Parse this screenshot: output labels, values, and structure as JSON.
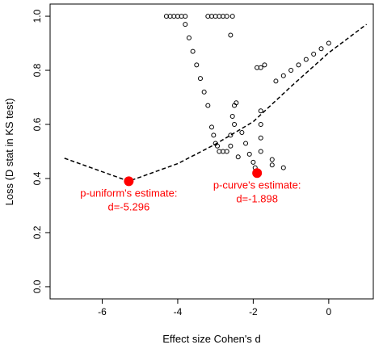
{
  "chart_data": {
    "type": "scatter",
    "xlabel": "Effect size Cohen's d",
    "ylabel": "Loss (D stat in KS test)",
    "xlim": [
      -7.38,
      1.18
    ],
    "ylim": [
      -0.045,
      1.045
    ],
    "xticks": [
      -6,
      -4,
      -2,
      0
    ],
    "yticks": [
      {
        "value": 0,
        "label": "0.0"
      },
      {
        "value": 0.2,
        "label": "0.2"
      },
      {
        "value": 0.4,
        "label": "0.4"
      },
      {
        "value": 0.6,
        "label": "0.6"
      },
      {
        "value": 0.8,
        "label": "0.8"
      },
      {
        "value": 1,
        "label": "1.0"
      }
    ],
    "points": {
      "color": "#000000",
      "x": [
        -4.3,
        -4.2,
        -4.1,
        -4.0,
        -3.9,
        -3.8,
        -3.2,
        -3.1,
        -3.0,
        -2.9,
        -2.8,
        -2.7,
        -2.55,
        -2.6,
        -3.8,
        -3.7,
        -3.6,
        -3.5,
        -3.4,
        -3.3,
        -3.2,
        -3.1,
        -3.05,
        -3.0,
        -2.95,
        -2.9,
        -2.8,
        -2.7,
        -2.6,
        -2.6,
        -2.5,
        -2.55,
        -2.5,
        -2.45,
        -2.4,
        -2.3,
        -2.2,
        -2.1,
        -2.0,
        -1.95,
        -1.8,
        -1.8,
        -1.8,
        -1.8,
        -1.5,
        -1.5,
        -1.2,
        -1.9,
        -1.8,
        -1.7,
        -1.4,
        -1.2,
        -1.0,
        -0.8,
        -0.6,
        -0.4,
        -0.2,
        0
      ],
      "y": [
        1.0,
        1.0,
        1.0,
        1.0,
        1.0,
        1.0,
        1.0,
        1.0,
        1.0,
        1.0,
        1.0,
        1.0,
        1.0,
        0.93,
        0.97,
        0.92,
        0.87,
        0.82,
        0.77,
        0.72,
        0.67,
        0.59,
        0.56,
        0.53,
        0.52,
        0.5,
        0.5,
        0.5,
        0.52,
        0.56,
        0.6,
        0.63,
        0.67,
        0.68,
        0.48,
        0.57,
        0.53,
        0.49,
        0.46,
        0.44,
        0.65,
        0.6,
        0.55,
        0.5,
        0.47,
        0.45,
        0.44,
        0.81,
        0.81,
        0.82,
        0.76,
        0.78,
        0.8,
        0.82,
        0.84,
        0.86,
        0.88,
        0.9
      ]
    },
    "line": {
      "color": "#000000",
      "x": [
        -7,
        -5.296,
        -4,
        -3,
        -2,
        -1,
        0,
        1
      ],
      "y": [
        0.475,
        0.39,
        0.455,
        0.527,
        0.61,
        0.74,
        0.865,
        0.97
      ]
    },
    "estimates": [
      {
        "x": -5.296,
        "y": 0.39,
        "color": "#ff0000",
        "label": [
          "p-uniform's estimate:",
          "d=-5.296"
        ]
      },
      {
        "x": -1.898,
        "y": 0.42,
        "color": "#ff0000",
        "label": [
          "p-curve's estimate:",
          "d=-1.898"
        ]
      }
    ]
  }
}
